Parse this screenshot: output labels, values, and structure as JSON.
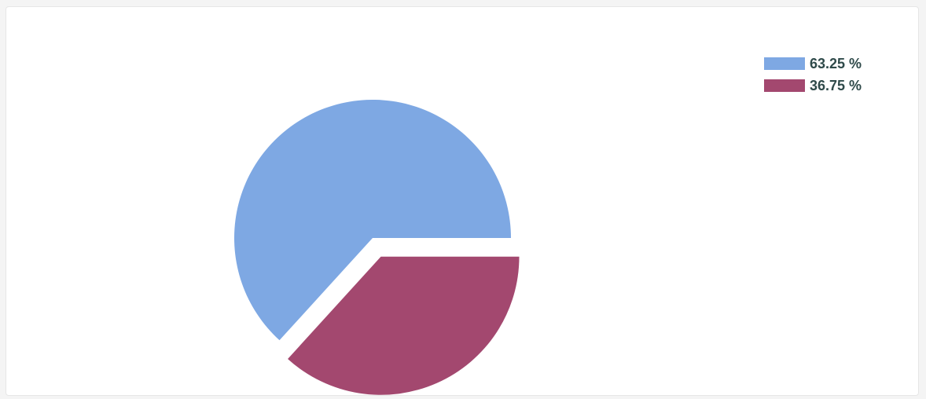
{
  "chart_data": {
    "type": "pie",
    "title": "",
    "slices": [
      {
        "label": "63.25 %",
        "value": 63.25,
        "color": "#7ea8e3",
        "exploded": false
      },
      {
        "label": "36.75 %",
        "value": 36.75,
        "color": "#a3486f",
        "exploded": true
      }
    ],
    "legend_position": "top-right",
    "start_angle_deg": 0,
    "direction": "counterclockwise"
  }
}
